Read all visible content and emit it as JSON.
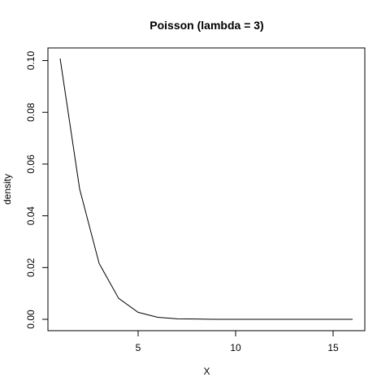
{
  "chart_data": {
    "type": "line",
    "title": "Poisson (lambda = 3)",
    "xlabel": "X",
    "ylabel": "density",
    "xlim": [
      1,
      16
    ],
    "ylim": [
      0,
      0.1008
    ],
    "xticks": [
      5,
      10,
      15
    ],
    "xtick_labels": [
      "5",
      "10",
      "15"
    ],
    "yticks": [
      0,
      0.02,
      0.04,
      0.06,
      0.08,
      0.1
    ],
    "ytick_labels": [
      "0.00",
      "0.02",
      "0.04",
      "0.06",
      "0.08",
      "0.10"
    ],
    "grid": false,
    "legend": "none",
    "line_color": "#000000",
    "series": [
      {
        "x": [
          1,
          2,
          3,
          4,
          5,
          6,
          7,
          8,
          9,
          10,
          11,
          12,
          13,
          14,
          15,
          16
        ],
        "values": [
          0.1008,
          0.0504,
          0.0216,
          0.0081,
          0.0027,
          0.0008,
          0.0002,
          0.0001,
          0.0,
          0.0,
          0.0,
          0.0,
          0.0,
          0.0,
          0.0,
          0.0
        ]
      }
    ]
  }
}
